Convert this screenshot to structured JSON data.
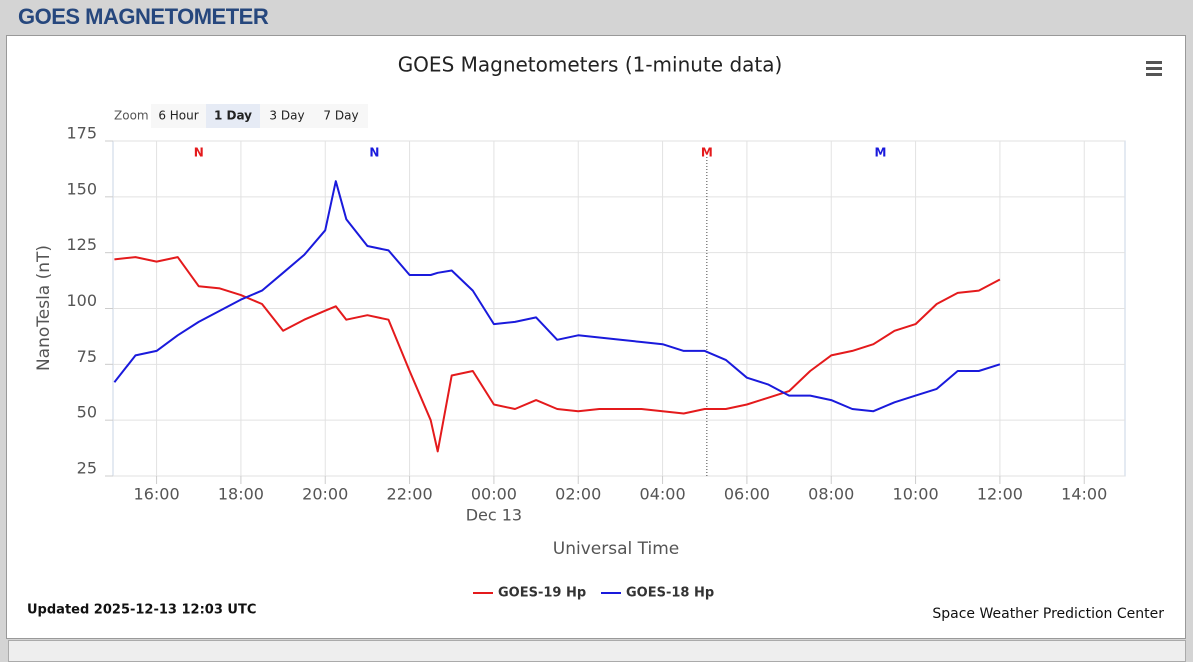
{
  "header": {
    "title": "GOES MAGNETOMETER"
  },
  "zoom": {
    "label": "Zoom",
    "buttons": [
      "6 Hour",
      "1 Day",
      "3 Day",
      "7 Day"
    ],
    "selected": 1
  },
  "chart_data": {
    "type": "line",
    "title": "GOES Magnetometers (1-minute data)",
    "y_label": "NanoTesla (nT)",
    "x_label": "Universal Time",
    "ylim": [
      25,
      175
    ],
    "yticks": [
      25,
      50,
      75,
      100,
      125,
      150,
      175
    ],
    "xlim": [
      "2025-12-12T14:58",
      "2025-12-13T14:58"
    ],
    "xticks": [
      {
        "value": "2025-12-12T16:00",
        "label": "16:00"
      },
      {
        "value": "2025-12-12T18:00",
        "label": "18:00"
      },
      {
        "value": "2025-12-12T20:00",
        "label": "20:00"
      },
      {
        "value": "2025-12-12T22:00",
        "label": "22:00"
      },
      {
        "value": "2025-12-13T00:00",
        "label": "00:00"
      },
      {
        "value": "2025-12-13T02:00",
        "label": "02:00"
      },
      {
        "value": "2025-12-13T04:00",
        "label": "04:00"
      },
      {
        "value": "2025-12-13T06:00",
        "label": "06:00"
      },
      {
        "value": "2025-12-13T08:00",
        "label": "08:00"
      },
      {
        "value": "2025-12-13T10:00",
        "label": "10:00"
      },
      {
        "value": "2025-12-13T12:00",
        "label": "12:00"
      },
      {
        "value": "2025-12-13T14:00",
        "label": "14:00"
      }
    ],
    "x_date_label": {
      "value": "2025-12-13T00:00",
      "label": "Dec 13"
    },
    "grid": true,
    "x": [
      "2025-12-12T15:00",
      "2025-12-12T15:30",
      "2025-12-12T16:00",
      "2025-12-12T16:30",
      "2025-12-12T17:00",
      "2025-12-12T17:30",
      "2025-12-12T18:00",
      "2025-12-12T18:30",
      "2025-12-12T19:00",
      "2025-12-12T19:30",
      "2025-12-12T20:00",
      "2025-12-12T20:15",
      "2025-12-12T20:30",
      "2025-12-12T21:00",
      "2025-12-12T21:30",
      "2025-12-12T22:00",
      "2025-12-12T22:30",
      "2025-12-12T22:40",
      "2025-12-12T23:00",
      "2025-12-12T23:30",
      "2025-12-13T00:00",
      "2025-12-13T00:30",
      "2025-12-13T01:00",
      "2025-12-13T01:30",
      "2025-12-13T02:00",
      "2025-12-13T02:30",
      "2025-12-13T03:00",
      "2025-12-13T03:30",
      "2025-12-13T04:00",
      "2025-12-13T04:30",
      "2025-12-13T05:00",
      "2025-12-13T05:30",
      "2025-12-13T06:00",
      "2025-12-13T06:30",
      "2025-12-13T07:00",
      "2025-12-13T07:30",
      "2025-12-13T08:00",
      "2025-12-13T08:30",
      "2025-12-13T09:00",
      "2025-12-13T09:30",
      "2025-12-13T10:00",
      "2025-12-13T10:30",
      "2025-12-13T11:00",
      "2025-12-13T11:30",
      "2025-12-13T12:00"
    ],
    "series": [
      {
        "name": "GOES-19 Hp",
        "color": "#e41a1c",
        "values": [
          122,
          123,
          121,
          123,
          110,
          109,
          106,
          102,
          90,
          95,
          99,
          101,
          95,
          97,
          95,
          72,
          50,
          36,
          70,
          72,
          57,
          55,
          59,
          55,
          54,
          55,
          55,
          55,
          54,
          53,
          55,
          55,
          57,
          60,
          63,
          72,
          79,
          81,
          84,
          90,
          93,
          102,
          107,
          108,
          113
        ]
      },
      {
        "name": "GOES-18 Hp",
        "color": "#1a1adc",
        "values": [
          67,
          79,
          81,
          88,
          94,
          99,
          104,
          108,
          116,
          124,
          135,
          157,
          140,
          128,
          126,
          115,
          115,
          116,
          117,
          108,
          93,
          94,
          96,
          86,
          88,
          87,
          86,
          85,
          84,
          81,
          81,
          77,
          69,
          66,
          61,
          61,
          59,
          55,
          54,
          58,
          61,
          64,
          72,
          72,
          75
        ]
      }
    ],
    "annotations": [
      {
        "x": "2025-12-12T17:00",
        "label": "N",
        "color": "#e41a1c"
      },
      {
        "x": "2025-12-12T21:10",
        "label": "N",
        "color": "#1a1adc"
      },
      {
        "x": "2025-12-13T05:03",
        "label": "M",
        "color": "#e41a1c",
        "line": true
      },
      {
        "x": "2025-12-13T09:10",
        "label": "M",
        "color": "#1a1adc"
      }
    ],
    "legend": "bottom",
    "updated": "Updated 2025-12-13 12:03 UTC",
    "credit": "Space Weather Prediction Center"
  }
}
